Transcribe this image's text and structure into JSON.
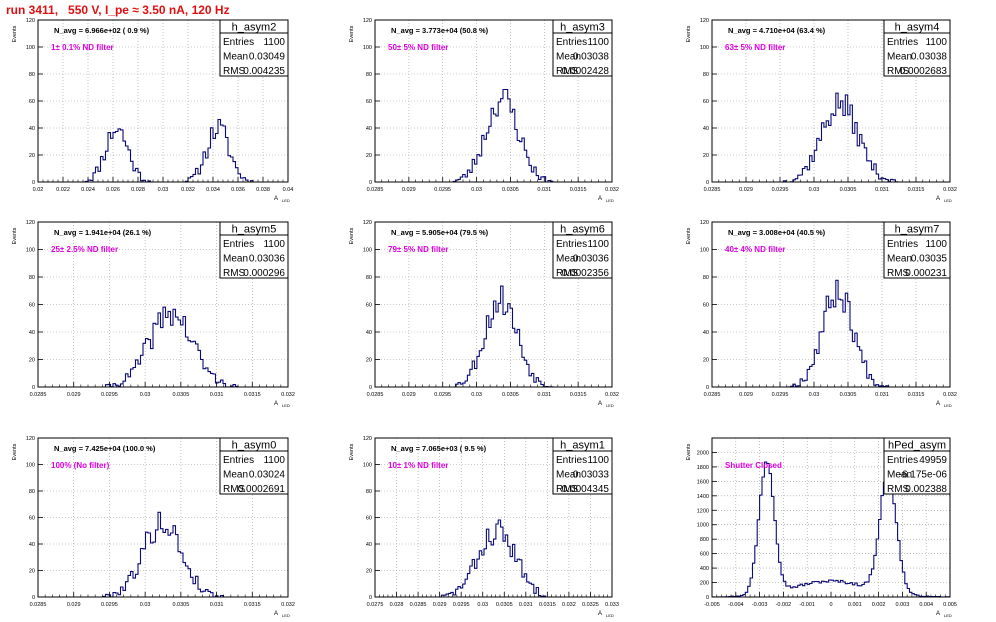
{
  "page": {
    "title": "run 3411,   550 V, I_pe ≈ 3.50 nA, 120 Hz"
  },
  "colors": {
    "histogram": "#0a0a7a",
    "annotation": "#e000e0",
    "title": "#e01010",
    "grid": "#9a9a9a"
  },
  "common": {
    "ylabel": "Events",
    "xlabel": "A",
    "xlabel_sub": "LED",
    "stats_labels": [
      "Entries",
      "Mean",
      "RMS"
    ]
  },
  "chart_data": [
    {
      "type": "bar",
      "panel": "h_asym2",
      "name": "h_asym2",
      "entries": "1100",
      "mean": "0.03049",
      "rms": "0.004235",
      "navg": "N_avg = 6.966e+02 ( 0.9 %)",
      "note": "1± 0.1% ND filter",
      "xlim": [
        0.02,
        0.04
      ],
      "ylim": [
        0,
        120
      ],
      "xticks": [
        0.02,
        0.022,
        0.024,
        0.026,
        0.028,
        0.03,
        0.032,
        0.034,
        0.036,
        0.038,
        0.04
      ],
      "xticklabels": [
        "0.02",
        "0.022",
        "0.024",
        "0.026",
        "0.028",
        "0.03",
        "0.032",
        "0.034",
        "0.036",
        "0.038",
        "0.04"
      ],
      "yticks": [
        0,
        20,
        40,
        60,
        80,
        100,
        120
      ],
      "peaks": [
        {
          "mu": 0.0263,
          "sigma": 0.0009,
          "amp": 40
        },
        {
          "mu": 0.0344,
          "sigma": 0.0009,
          "amp": 40
        }
      ],
      "seed": 11
    },
    {
      "type": "bar",
      "panel": "h_asym3",
      "name": "h_asym3",
      "entries": "1100",
      "mean": "0.03038",
      "rms": "0.0002428",
      "navg": "N_avg = 3.773e+04 (50.8 %)",
      "note": "50± 5% ND filter",
      "xlim": [
        0.0285,
        0.032
      ],
      "ylim": [
        0,
        120
      ],
      "xticks": [
        0.0285,
        0.029,
        0.0295,
        0.03,
        0.0305,
        0.031,
        0.0315,
        0.032
      ],
      "xticklabels": [
        "0.0285",
        "0.029",
        "0.0295",
        "0.03",
        "0.0305",
        "0.031",
        "0.0315",
        "0.032"
      ],
      "yticks": [
        0,
        20,
        40,
        60,
        80,
        100,
        120
      ],
      "peaks": [
        {
          "mu": 0.03038,
          "sigma": 0.00024,
          "amp": 62
        }
      ],
      "seed": 23
    },
    {
      "type": "bar",
      "panel": "h_asym4",
      "name": "h_asym4",
      "entries": "1100",
      "mean": "0.03038",
      "rms": "0.0002683",
      "navg": "N_avg = 4.710e+04 (63.4 %)",
      "note": "63± 5% ND filter",
      "xlim": [
        0.0285,
        0.032
      ],
      "ylim": [
        0,
        120
      ],
      "xticks": [
        0.0285,
        0.029,
        0.0295,
        0.03,
        0.0305,
        0.031,
        0.0315,
        0.032
      ],
      "xticklabels": [
        "0.0285",
        "0.029",
        "0.0295",
        "0.03",
        "0.0305",
        "0.031",
        "0.0315",
        "0.032"
      ],
      "yticks": [
        0,
        20,
        40,
        60,
        80,
        100,
        120
      ],
      "peaks": [
        {
          "mu": 0.03038,
          "sigma": 0.00027,
          "amp": 58
        }
      ],
      "seed": 37
    },
    {
      "type": "bar",
      "panel": "h_asym5",
      "name": "h_asym5",
      "entries": "1100",
      "mean": "0.03036",
      "rms": "0.000296",
      "navg": "N_avg = 1.941e+04 (26.1 %)",
      "note": "25± 2.5% ND filter",
      "xlim": [
        0.0285,
        0.032
      ],
      "ylim": [
        0,
        120
      ],
      "xticks": [
        0.0285,
        0.029,
        0.0295,
        0.03,
        0.0305,
        0.031,
        0.0315,
        0.032
      ],
      "xticklabels": [
        "0.0285",
        "0.029",
        "0.0295",
        "0.03",
        "0.0305",
        "0.031",
        "0.0315",
        "0.032"
      ],
      "yticks": [
        0,
        20,
        40,
        60,
        80,
        100,
        120
      ],
      "peaks": [
        {
          "mu": 0.03036,
          "sigma": 0.0003,
          "amp": 54
        }
      ],
      "seed": 41
    },
    {
      "type": "bar",
      "panel": "h_asym6",
      "name": "h_asym6",
      "entries": "1100",
      "mean": "0.03036",
      "rms": "0.0002356",
      "navg": "N_avg = 5.905e+04 (79.5 %)",
      "note": "79± 5% ND filter",
      "xlim": [
        0.0285,
        0.032
      ],
      "ylim": [
        0,
        120
      ],
      "xticks": [
        0.0285,
        0.029,
        0.0295,
        0.03,
        0.0305,
        0.031,
        0.0315,
        0.032
      ],
      "xticklabels": [
        "0.0285",
        "0.029",
        "0.0295",
        "0.03",
        "0.0305",
        "0.031",
        "0.0315",
        "0.032"
      ],
      "yticks": [
        0,
        20,
        40,
        60,
        80,
        100,
        120
      ],
      "peaks": [
        {
          "mu": 0.03036,
          "sigma": 0.00024,
          "amp": 64
        }
      ],
      "seed": 53
    },
    {
      "type": "bar",
      "panel": "h_asym7",
      "name": "h_asym7",
      "entries": "1100",
      "mean": "0.03035",
      "rms": "0.000231",
      "navg": "N_avg = 3.008e+04 (40.5 %)",
      "note": "40± 4% ND filter",
      "xlim": [
        0.0285,
        0.032
      ],
      "ylim": [
        0,
        120
      ],
      "xticks": [
        0.0285,
        0.029,
        0.0295,
        0.03,
        0.0305,
        0.031,
        0.0315,
        0.032
      ],
      "xticklabels": [
        "0.0285",
        "0.029",
        "0.0295",
        "0.03",
        "0.0305",
        "0.031",
        "0.0315",
        "0.032"
      ],
      "yticks": [
        0,
        20,
        40,
        60,
        80,
        100,
        120
      ],
      "peaks": [
        {
          "mu": 0.03035,
          "sigma": 0.00023,
          "amp": 70
        }
      ],
      "seed": 67
    },
    {
      "type": "bar",
      "panel": "h_asym0",
      "name": "h_asym0",
      "entries": "1100",
      "mean": "0.03024",
      "rms": "0.0002691",
      "navg": "N_avg = 7.425e+04 (100.0 %)",
      "note": "100% (No filter)",
      "xlim": [
        0.0285,
        0.032
      ],
      "ylim": [
        0,
        120
      ],
      "xticks": [
        0.0285,
        0.029,
        0.0295,
        0.03,
        0.0305,
        0.031,
        0.0315,
        0.032
      ],
      "xticklabels": [
        "0.0285",
        "0.029",
        "0.0295",
        "0.03",
        "0.0305",
        "0.031",
        "0.0315",
        "0.032"
      ],
      "yticks": [
        0,
        20,
        40,
        60,
        80,
        100,
        120
      ],
      "peaks": [
        {
          "mu": 0.03024,
          "sigma": 0.00027,
          "amp": 56
        }
      ],
      "seed": 79
    },
    {
      "type": "bar",
      "panel": "h_asym1",
      "name": "h_asym1",
      "entries": "1100",
      "mean": "0.03033",
      "rms": "0.0004345",
      "navg": "N_avg = 7.065e+03 ( 9.5 %)",
      "note": "10± 1% ND filter",
      "xlim": [
        0.0275,
        0.033
      ],
      "ylim": [
        0,
        120
      ],
      "xticks": [
        0.0275,
        0.028,
        0.0285,
        0.029,
        0.0295,
        0.03,
        0.0305,
        0.031,
        0.0315,
        0.032,
        0.0325,
        0.033
      ],
      "xticklabels": [
        "0.0275",
        "0.028",
        "0.0285",
        "0.029",
        "0.0295",
        "0.03",
        "0.0305",
        "0.031",
        "0.0315",
        "0.032",
        "0.0325",
        "0.033"
      ],
      "yticks": [
        0,
        20,
        40,
        60,
        80,
        100,
        120
      ],
      "peaks": [
        {
          "mu": 0.03033,
          "sigma": 0.00043,
          "amp": 50
        }
      ],
      "seed": 83
    },
    {
      "type": "bar",
      "panel": "hPed_asym",
      "name": "hPed_asym",
      "entries": "49959",
      "mean": "-6.175e-06",
      "rms": "0.002388",
      "navg": "",
      "note": "Shutter Closed",
      "xlim": [
        -0.005,
        0.005
      ],
      "ylim": [
        0,
        2200
      ],
      "xticks": [
        -0.005,
        -0.004,
        -0.003,
        -0.002,
        -0.001,
        0,
        0.001,
        0.002,
        0.003,
        0.004,
        0.005
      ],
      "xticklabels": [
        "-0.005",
        "-0.004",
        "-0.003",
        "-0.002",
        "-0.001",
        "0",
        "0.001",
        "0.002",
        "0.003",
        "0.004",
        "0.005"
      ],
      "yticks": [
        0,
        200,
        400,
        600,
        800,
        1000,
        1200,
        1400,
        1600,
        1800,
        2000
      ],
      "peaks": [
        {
          "mu": -0.0027,
          "sigma": 0.00032,
          "amp": 1850
        },
        {
          "mu": 0.0024,
          "sigma": 0.00035,
          "amp": 1650
        },
        {
          "mu": 0.0,
          "sigma": 0.0016,
          "amp": 220
        }
      ],
      "seed": 97
    }
  ]
}
